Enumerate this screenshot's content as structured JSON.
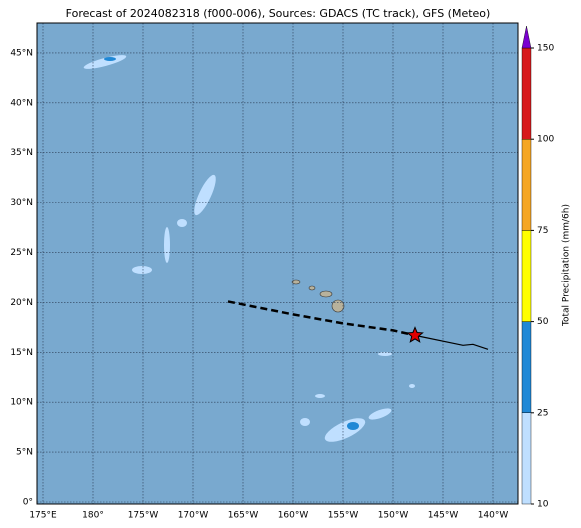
{
  "title": "Forecast of 2024082318 (f000-006), Sources: GDACS (TC track), GFS (Meteo)",
  "map": {
    "xlim": [
      -185.6,
      -137.5
    ],
    "ylim": [
      -0.2,
      48
    ],
    "lat_ticks": [
      {
        "value": 0,
        "label": "0°"
      },
      {
        "value": 5,
        "label": "5°N"
      },
      {
        "value": 10,
        "label": "10°N"
      },
      {
        "value": 15,
        "label": "15°N"
      },
      {
        "value": 20,
        "label": "20°N"
      },
      {
        "value": 25,
        "label": "25°N"
      },
      {
        "value": 30,
        "label": "30°N"
      },
      {
        "value": 35,
        "label": "35°N"
      },
      {
        "value": 40,
        "label": "40°N"
      },
      {
        "value": 45,
        "label": "45°N"
      }
    ],
    "lon_ticks": [
      {
        "value": -185,
        "label": "175°E"
      },
      {
        "value": -180,
        "label": "180°"
      },
      {
        "value": -175,
        "label": "175°W"
      },
      {
        "value": -170,
        "label": "170°W"
      },
      {
        "value": -165,
        "label": "165°W"
      },
      {
        "value": -160,
        "label": "160°W"
      },
      {
        "value": -155,
        "label": "155°W"
      },
      {
        "value": -150,
        "label": "150°W"
      },
      {
        "value": -145,
        "label": "145°W"
      },
      {
        "value": -140,
        "label": "140°W"
      }
    ],
    "forecast_track": {
      "lon": [
        -166.5,
        -160,
        -155,
        -150,
        -147.8
      ],
      "lat": [
        20.1,
        18.8,
        17.9,
        17.2,
        16.7
      ]
    },
    "past_track": {
      "lon": [
        -147.8,
        -143,
        -142,
        -140.5
      ],
      "lat": [
        16.7,
        15.7,
        15.8,
        15.3
      ]
    },
    "storm_position": {
      "lon": -147.8,
      "lat": 16.7
    }
  },
  "colorbar": {
    "label": "Total Precipitation (mm/6h)",
    "ticks": [
      10,
      25,
      50,
      75,
      100,
      150
    ],
    "colors": [
      "#bfdfff",
      "#1f88d6",
      "#ffff00",
      "#f5a623",
      "#d7191c"
    ],
    "extend_color": "#7a00d0"
  }
}
